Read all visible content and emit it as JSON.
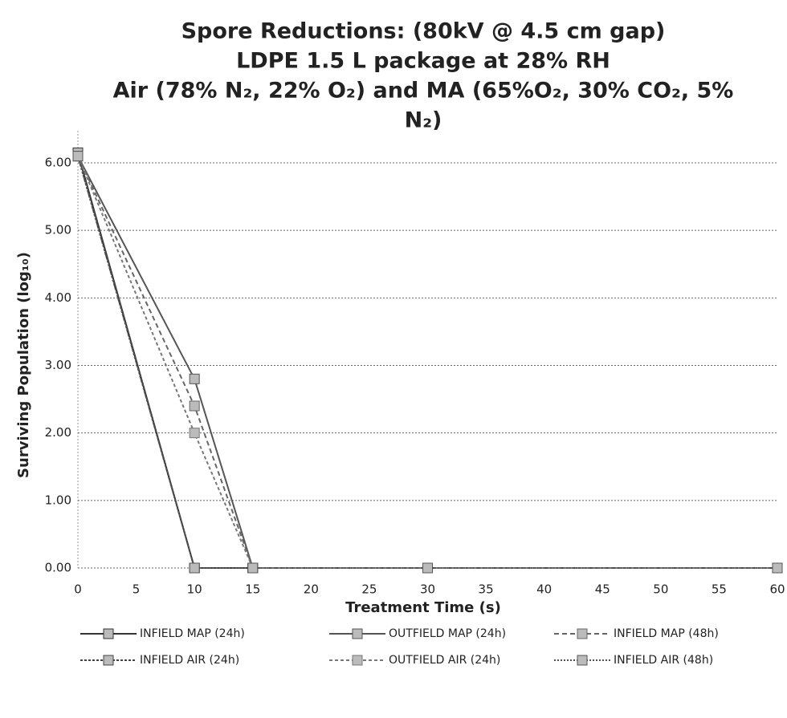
{
  "chart_data": {
    "type": "line",
    "title": [
      "Spore Reductions:  (80kV @ 4.5 cm gap)",
      "LDPE 1.5 L package at 28% RH",
      "Air (78% N₂, 22% O₂) and MA (65%O₂, 30% CO₂, 5%",
      "N₂)"
    ],
    "x_label": "Treatment Time (s)",
    "y_label": "Surviving Population (log₁₀)",
    "x": [
      0,
      10,
      15,
      30,
      60
    ],
    "series": [
      {
        "name": "INFIELD MAP (24h)",
        "color": "#333333",
        "dash": "none",
        "values": [
          6.15,
          0,
          0,
          0,
          0
        ]
      },
      {
        "name": "OUTFIELD MAP (24h)",
        "color": "#555555",
        "dash": "none",
        "values": [
          6.1,
          2.8,
          0,
          0,
          0
        ]
      },
      {
        "name": "INFIELD MAP (48h)",
        "color": "#666666",
        "dash": "6 4",
        "values": [
          6.1,
          2.4,
          0,
          0,
          0
        ]
      },
      {
        "name": "INFIELD AIR (24h)",
        "color": "#444444",
        "dash": "3 2",
        "values": [
          6.1,
          0,
          0,
          0,
          0
        ]
      },
      {
        "name": "OUTFIELD AIR (24h)",
        "color": "#777777",
        "dash": "4 3",
        "values": [
          6.1,
          2.0,
          0,
          0,
          0
        ]
      },
      {
        "name": "INFIELD AIR (48h)",
        "color": "#555555",
        "dash": "2 2",
        "values": [
          6.1,
          0,
          0,
          0,
          0
        ]
      }
    ],
    "xlim": [
      0,
      60
    ],
    "xticks": [
      0,
      5,
      10,
      15,
      20,
      25,
      30,
      35,
      40,
      45,
      50,
      55,
      60
    ],
    "ylim": [
      0,
      6
    ],
    "yticks": [
      {
        "value": 0,
        "label": "0.00"
      },
      {
        "value": 1,
        "label": "1.00"
      },
      {
        "value": 2,
        "label": "2.00"
      },
      {
        "value": 3,
        "label": "3.00"
      },
      {
        "value": 4,
        "label": "4.00"
      },
      {
        "value": 5,
        "label": "5.00"
      },
      {
        "value": 6,
        "label": "6.00"
      }
    ],
    "grid": true,
    "legend": "bottom"
  }
}
